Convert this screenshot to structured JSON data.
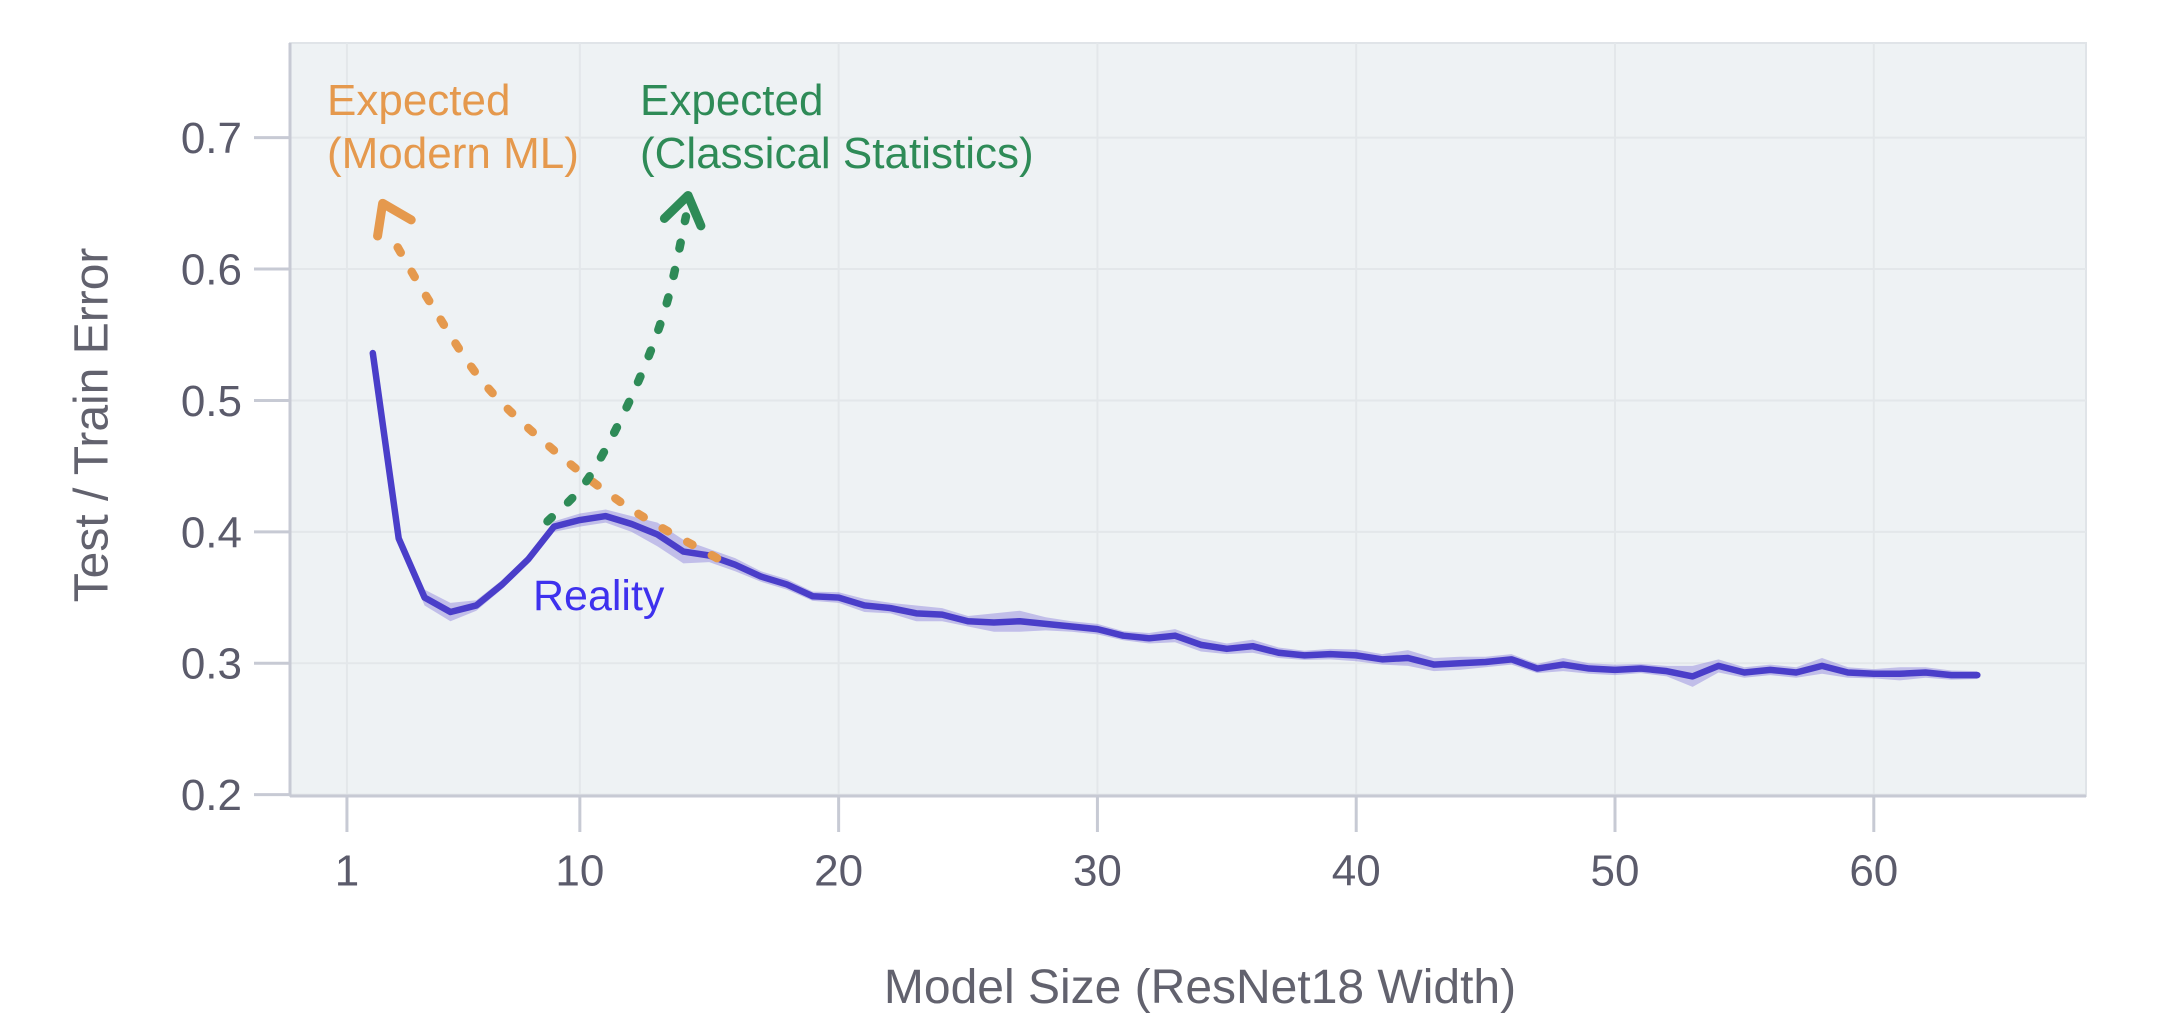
{
  "chart_data": {
    "type": "line",
    "title": "",
    "xlabel": "Model Size (ResNet18 Width)",
    "ylabel": "Test / Train Error",
    "x_ticks": [
      1,
      10,
      20,
      30,
      40,
      50,
      60
    ],
    "y_ticks": [
      0.2,
      0.3,
      0.4,
      0.5,
      0.6,
      0.7
    ],
    "x_domain": [
      -1.2,
      68.2
    ],
    "y_domain": [
      0.199,
      0.772
    ],
    "grid": true,
    "legend": "none",
    "series": [
      {
        "name": "Reality",
        "x": [
          2,
          3,
          4,
          5,
          6,
          7,
          8,
          9,
          10,
          11,
          12,
          13,
          14,
          15,
          16,
          17,
          18,
          19,
          20,
          21,
          22,
          23,
          24,
          25,
          26,
          27,
          28,
          29,
          30,
          31,
          32,
          33,
          34,
          35,
          36,
          37,
          38,
          39,
          40,
          41,
          42,
          43,
          44,
          45,
          46,
          47,
          48,
          49,
          50,
          51,
          52,
          53,
          54,
          55,
          56,
          57,
          58,
          59,
          60,
          61,
          62,
          63,
          64
        ],
        "y": [
          0.536,
          0.395,
          0.35,
          0.339,
          0.344,
          0.36,
          0.379,
          0.404,
          0.409,
          0.412,
          0.406,
          0.398,
          0.385,
          0.382,
          0.375,
          0.366,
          0.36,
          0.351,
          0.35,
          0.344,
          0.342,
          0.338,
          0.337,
          0.332,
          0.331,
          0.332,
          0.33,
          0.328,
          0.326,
          0.321,
          0.319,
          0.321,
          0.314,
          0.311,
          0.313,
          0.308,
          0.306,
          0.307,
          0.306,
          0.303,
          0.304,
          0.299,
          0.3,
          0.301,
          0.303,
          0.296,
          0.299,
          0.296,
          0.295,
          0.296,
          0.294,
          0.29,
          0.298,
          0.293,
          0.295,
          0.293,
          0.298,
          0.293,
          0.292,
          0.292,
          0.293,
          0.291,
          0.291
        ],
        "band_halfwidth": [
          0.004,
          0.004,
          0.006,
          0.007,
          0.004,
          0.0035,
          0.0035,
          0.004,
          0.005,
          0.005,
          0.006,
          0.009,
          0.009,
          0.005,
          0.005,
          0.004,
          0.004,
          0.0035,
          0.004,
          0.005,
          0.004,
          0.006,
          0.005,
          0.004,
          0.007,
          0.008,
          0.005,
          0.004,
          0.004,
          0.0035,
          0.004,
          0.005,
          0.005,
          0.004,
          0.005,
          0.004,
          0.0035,
          0.004,
          0.0045,
          0.004,
          0.006,
          0.005,
          0.005,
          0.004,
          0.004,
          0.0035,
          0.005,
          0.004,
          0.004,
          0.0035,
          0.004,
          0.008,
          0.005,
          0.004,
          0.004,
          0.004,
          0.006,
          0.004,
          0.0035,
          0.005,
          0.004,
          0.0035,
          0.003
        ]
      }
    ],
    "annotation_curves": [
      {
        "name": "expected-modern-ml",
        "style": "dashed",
        "points": [
          [
            15.3,
            0.38
          ],
          [
            12.0,
            0.417
          ],
          [
            9.0,
            0.462
          ],
          [
            6.3,
            0.513
          ],
          [
            4.2,
            0.575
          ],
          [
            2.6,
            0.629
          ]
        ],
        "arrow_tip": [
          2.38,
          0.65
        ]
      },
      {
        "name": "expected-classical",
        "style": "dashed",
        "points": [
          [
            8.75,
            0.408
          ],
          [
            10.3,
            0.44
          ],
          [
            12.0,
            0.503
          ],
          [
            13.3,
            0.57
          ],
          [
            14.1,
            0.64
          ]
        ],
        "arrow_tip": [
          14.18,
          0.656
        ]
      }
    ]
  },
  "annotations": {
    "modern_ml": {
      "line1": "Expected",
      "line2": "(Modern ML)"
    },
    "classical": {
      "line1": "Expected",
      "line2": "(Classical Statistics)"
    },
    "reality": {
      "label": "Reality"
    }
  },
  "colors": {
    "line": "#4A3EC9",
    "band": "rgba(124,112,218,0.40)",
    "orange": "#E5994D",
    "green": "#2E8B57",
    "reality_label": "#3E31EE",
    "plot_bg": "#EEF2F4",
    "plot_border": "#E0E4E8",
    "grid": "#E3E7EA",
    "spine": "#C7CAD4",
    "tick_label": "#5B5B6B",
    "axis_title": "#62626E"
  }
}
